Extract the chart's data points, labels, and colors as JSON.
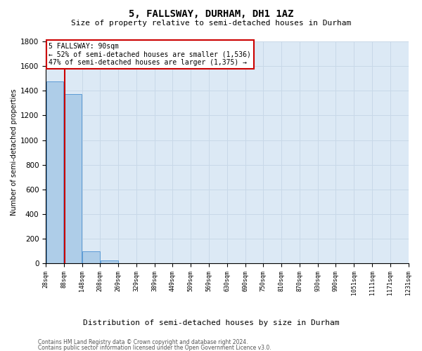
{
  "title": "5, FALLSWAY, DURHAM, DH1 1AZ",
  "subtitle": "Size of property relative to semi-detached houses in Durham",
  "xlabel": "Distribution of semi-detached houses by size in Durham",
  "ylabel": "Number of semi-detached properties",
  "footnote1": "Contains HM Land Registry data © Crown copyright and database right 2024.",
  "footnote2": "Contains public sector information licensed under the Open Government Licence v3.0.",
  "annotation_title": "5 FALLSWAY: 90sqm",
  "annotation_line1": "← 52% of semi-detached houses are smaller (1,536)",
  "annotation_line2": "47% of semi-detached houses are larger (1,375) →",
  "property_line_x": 90,
  "ylim": [
    0,
    1800
  ],
  "bar_color": "#aecde8",
  "bar_edge_color": "#5b9bd5",
  "property_line_color": "#cc0000",
  "annotation_box_color": "#cc0000",
  "bins": [
    28,
    88,
    148,
    208,
    269,
    329,
    389,
    449,
    509,
    569,
    630,
    690,
    750,
    810,
    870,
    930,
    990,
    1051,
    1111,
    1171,
    1231
  ],
  "counts": [
    1475,
    1375,
    100,
    25,
    0,
    0,
    0,
    0,
    0,
    0,
    0,
    0,
    0,
    0,
    0,
    0,
    0,
    0,
    0,
    0
  ],
  "xtick_labels": [
    "28sqm",
    "88sqm",
    "148sqm",
    "208sqm",
    "269sqm",
    "329sqm",
    "389sqm",
    "449sqm",
    "509sqm",
    "569sqm",
    "630sqm",
    "690sqm",
    "750sqm",
    "810sqm",
    "870sqm",
    "930sqm",
    "990sqm",
    "1051sqm",
    "1111sqm",
    "1171sqm",
    "1231sqm"
  ],
  "ytick_vals": [
    0,
    200,
    400,
    600,
    800,
    1000,
    1200,
    1400,
    1600,
    1800
  ],
  "grid_color": "#c8d8e8",
  "bg_color": "#dce9f5",
  "title_fontsize": 10,
  "subtitle_fontsize": 8,
  "ylabel_fontsize": 7,
  "xlabel_fontsize": 8,
  "ytick_fontsize": 7.5,
  "xtick_fontsize": 6,
  "footnote_fontsize": 5.5
}
